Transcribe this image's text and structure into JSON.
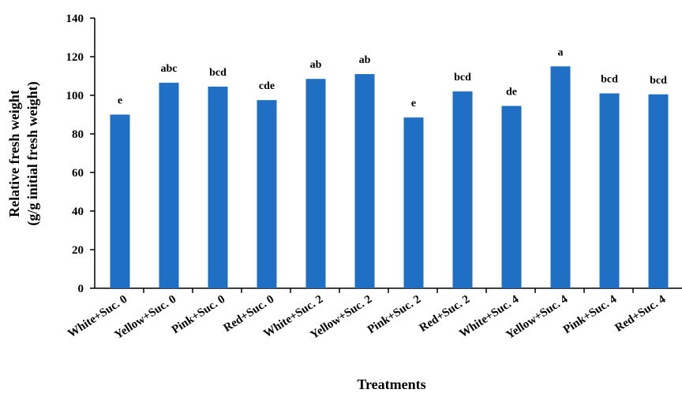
{
  "chart_data": {
    "type": "bar",
    "categories": [
      "White+Suc. 0",
      "Yellow+Suc. 0",
      "Pink+Suc. 0",
      "Red+Suc. 0",
      "White+Suc. 2",
      "Yellow+Suc. 2",
      "Pink+Suc. 2",
      "Red+Suc. 2",
      "White+Suc. 4",
      "Yellow+Suc. 4",
      "Pink+Suc. 4",
      "Red+Suc. 4"
    ],
    "values": [
      90,
      106.5,
      104.5,
      97.5,
      108.5,
      111,
      88.5,
      102,
      94.5,
      115,
      101,
      100.5
    ],
    "significance_letters": [
      "e",
      "abc",
      "bcd",
      "cde",
      "ab",
      "ab",
      "e",
      "bcd",
      "de",
      "a",
      "bcd",
      "bcd"
    ],
    "title": "",
    "xlabel": "Treatments",
    "ylabel_lines": [
      "Relative fresh weight",
      "(g/g initial fresh weight)"
    ],
    "ylim": [
      0,
      140
    ],
    "yticks": [
      0,
      20,
      40,
      60,
      80,
      100,
      120,
      140
    ],
    "bar_color": "#1f6fc5",
    "grid": false,
    "legend": "none"
  }
}
